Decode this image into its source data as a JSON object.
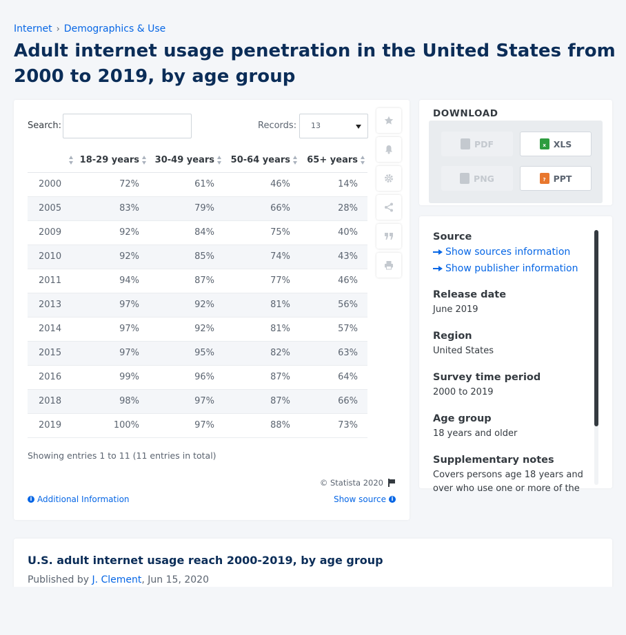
{
  "breadcrumb": [
    "Internet",
    "Demographics & Use"
  ],
  "page_title": "Adult internet usage penetration in the United States from 2000 to 2019, by age group",
  "search": {
    "label": "Search:",
    "value": ""
  },
  "records": {
    "label": "Records:",
    "value": "13"
  },
  "table": {
    "headers": [
      "",
      "18-29 years",
      "30-49 years",
      "50-64 years",
      "65+ years"
    ],
    "rows": [
      [
        "2000",
        "72%",
        "61%",
        "46%",
        "14%"
      ],
      [
        "2005",
        "83%",
        "79%",
        "66%",
        "28%"
      ],
      [
        "2009",
        "92%",
        "84%",
        "75%",
        "40%"
      ],
      [
        "2010",
        "92%",
        "85%",
        "74%",
        "43%"
      ],
      [
        "2011",
        "94%",
        "87%",
        "77%",
        "46%"
      ],
      [
        "2013",
        "97%",
        "92%",
        "81%",
        "56%"
      ],
      [
        "2014",
        "97%",
        "92%",
        "81%",
        "57%"
      ],
      [
        "2015",
        "97%",
        "95%",
        "82%",
        "63%"
      ],
      [
        "2016",
        "99%",
        "96%",
        "87%",
        "64%"
      ],
      [
        "2018",
        "98%",
        "97%",
        "87%",
        "66%"
      ],
      [
        "2019",
        "100%",
        "97%",
        "88%",
        "73%"
      ]
    ]
  },
  "entries_text": "Showing entries 1 to 11 (11 entries in total)",
  "copyright": "© Statista 2020",
  "additional_info": "Additional Information",
  "show_source": "Show source",
  "tools": [
    "star-icon",
    "bell-icon",
    "gear-icon",
    "share-icon",
    "quote-icon",
    "print-icon"
  ],
  "download": {
    "title": "DOWNLOAD",
    "buttons": [
      {
        "label": "PDF",
        "enabled": false
      },
      {
        "label": "XLS",
        "enabled": true
      },
      {
        "label": "PNG",
        "enabled": false
      },
      {
        "label": "PPT",
        "enabled": true
      }
    ]
  },
  "source": {
    "heading": "Source",
    "link_sources": "Show sources information",
    "link_publisher": "Show publisher information",
    "fields": [
      {
        "label": "Release date",
        "value": "June 2019"
      },
      {
        "label": "Region",
        "value": "United States"
      },
      {
        "label": "Survey time period",
        "value": "2000 to 2019"
      },
      {
        "label": "Age group",
        "value": "18 years and older"
      },
      {
        "label": "Supplementary notes",
        "value": "Covers persons age 18 years and over who use one or more of the"
      }
    ]
  },
  "article": {
    "title": "U.S. adult internet usage reach 2000-2019, by age group",
    "published_prefix": "Published by ",
    "author": "J. Clement",
    "date": ", Jun 15, 2020"
  },
  "colors": {
    "accent": "#0666e5",
    "title": "#0b2d58",
    "xls": "#2e9c3f",
    "ppt": "#e8772e"
  }
}
